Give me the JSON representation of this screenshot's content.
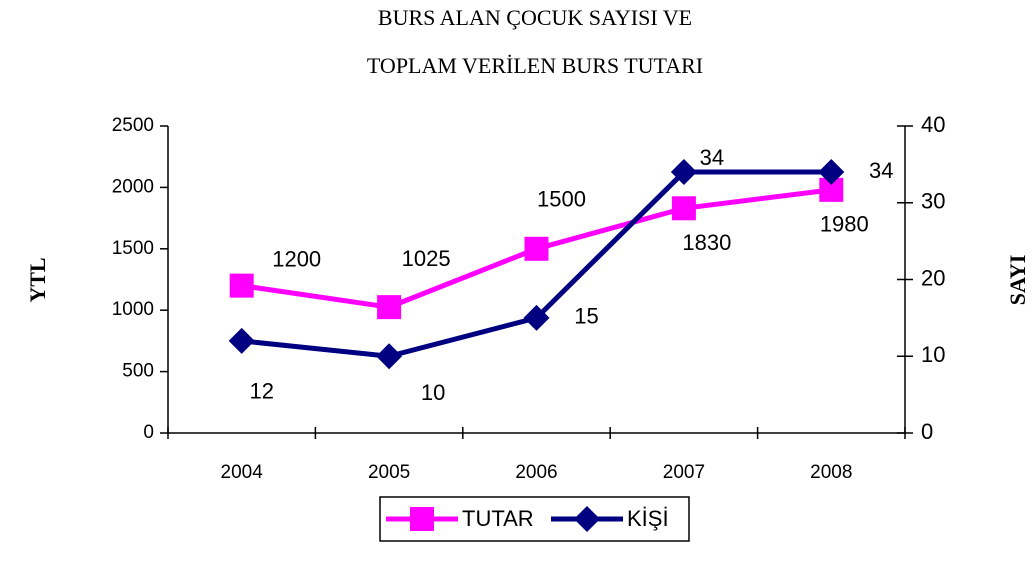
{
  "chart_data": {
    "type": "line",
    "title": [
      "BURS ALAN ÇOCUK SAYISI VE",
      "TOPLAM VERİLEN BURS TUTARI"
    ],
    "ylabel": "YTL",
    "y2label": "SAYI",
    "categories": [
      "2004",
      "2005",
      "2006",
      "2007",
      "2008"
    ],
    "series": [
      {
        "name": "TUTAR",
        "color": "#ff00ff",
        "values": [
          1200,
          1025,
          1500,
          1830,
          1980
        ]
      },
      {
        "name": "KİŞİ",
        "color": "#000080",
        "axis": "y2",
        "values": [
          12,
          10,
          15,
          34,
          34
        ]
      }
    ],
    "ylim": [
      0,
      2500
    ],
    "yticks": [
      0,
      500,
      1000,
      1500,
      2000,
      2500
    ],
    "y2lim": [
      0,
      40
    ],
    "y2ticks": [
      0,
      10,
      20,
      30,
      40
    ],
    "legend": "bottom"
  }
}
